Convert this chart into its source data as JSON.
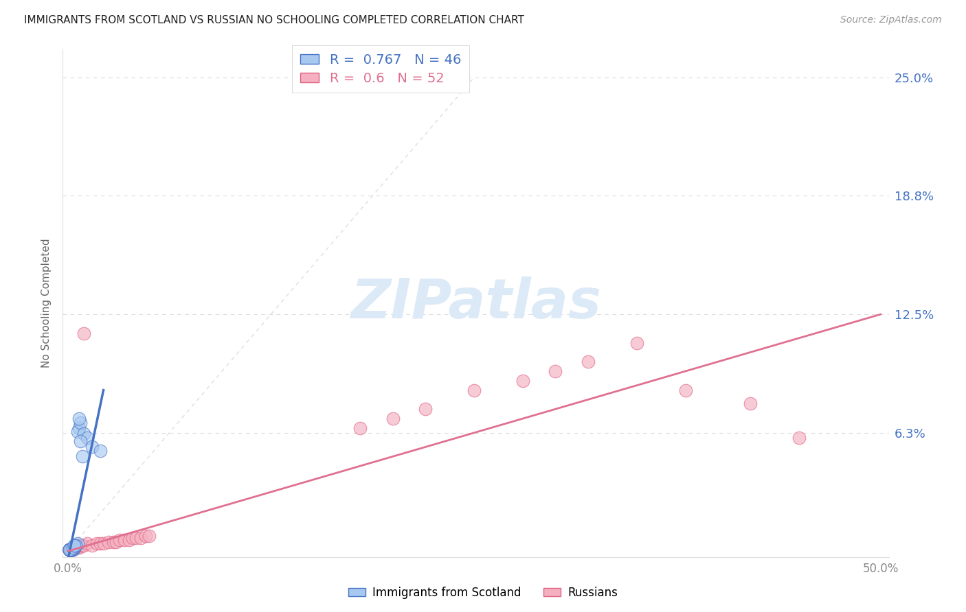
{
  "title": "IMMIGRANTS FROM SCOTLAND VS RUSSIAN NO SCHOOLING COMPLETED CORRELATION CHART",
  "source": "Source: ZipAtlas.com",
  "ylabel": "No Schooling Completed",
  "xlim": [
    -0.003,
    0.505
  ],
  "ylim": [
    -0.003,
    0.265
  ],
  "ytick_positions": [
    0.0,
    0.0625,
    0.125,
    0.1875,
    0.25
  ],
  "ytick_labels_right": [
    "",
    "6.3%",
    "12.5%",
    "18.8%",
    "25.0%"
  ],
  "xtick_positions": [
    0.0,
    0.5
  ],
  "xtick_labels": [
    "0.0%",
    "50.0%"
  ],
  "scotland_face_color": "#a8c8f0",
  "scotland_edge_color": "#4472c4",
  "russia_face_color": "#f4b0c0",
  "russia_edge_color": "#e06080",
  "scotland_R": 0.767,
  "scotland_N": 46,
  "russia_R": 0.6,
  "russia_N": 52,
  "scotland_line_color": "#4472c4",
  "russia_line_color": "#e07090",
  "diag_color": "#bbbbbb",
  "grid_color": "#cccccc",
  "background_color": "#ffffff",
  "title_color": "#222222",
  "right_axis_color": "#4472c4",
  "tick_color": "#888888",
  "watermark_text": "ZIPatlas",
  "watermark_color": "#dce9f7",
  "source_text": "Source: ZipAtlas.com",
  "legend_label_scotland": "Immigrants from Scotland",
  "legend_label_russia": "Russians",
  "scot_x": [
    0.001,
    0.002,
    0.003,
    0.002,
    0.001,
    0.003,
    0.004,
    0.002,
    0.001,
    0.003,
    0.002,
    0.001,
    0.004,
    0.003,
    0.002,
    0.001,
    0.002,
    0.003,
    0.001,
    0.002,
    0.003,
    0.002,
    0.004,
    0.003,
    0.001,
    0.002,
    0.003,
    0.004,
    0.002,
    0.001,
    0.005,
    0.004,
    0.003,
    0.006,
    0.005,
    0.004,
    0.007,
    0.006,
    0.008,
    0.007,
    0.01,
    0.012,
    0.015,
    0.02,
    0.008,
    0.009
  ],
  "scot_y": [
    0.001,
    0.001,
    0.002,
    0.001,
    0.001,
    0.002,
    0.002,
    0.001,
    0.001,
    0.001,
    0.001,
    0.001,
    0.002,
    0.001,
    0.001,
    0.001,
    0.001,
    0.001,
    0.001,
    0.001,
    0.002,
    0.001,
    0.002,
    0.002,
    0.001,
    0.001,
    0.002,
    0.002,
    0.001,
    0.001,
    0.003,
    0.003,
    0.002,
    0.004,
    0.003,
    0.003,
    0.065,
    0.063,
    0.068,
    0.07,
    0.062,
    0.06,
    0.055,
    0.053,
    0.058,
    0.05
  ],
  "rus_x": [
    0.001,
    0.002,
    0.001,
    0.003,
    0.002,
    0.001,
    0.003,
    0.004,
    0.002,
    0.003,
    0.002,
    0.001,
    0.004,
    0.005,
    0.003,
    0.004,
    0.006,
    0.005,
    0.007,
    0.006,
    0.008,
    0.007,
    0.009,
    0.01,
    0.012,
    0.015,
    0.018,
    0.02,
    0.022,
    0.025,
    0.028,
    0.03,
    0.032,
    0.035,
    0.038,
    0.04,
    0.042,
    0.045,
    0.048,
    0.05,
    0.18,
    0.2,
    0.22,
    0.25,
    0.28,
    0.3,
    0.32,
    0.35,
    0.38,
    0.42,
    0.45,
    0.01
  ],
  "rus_y": [
    0.001,
    0.001,
    0.001,
    0.002,
    0.001,
    0.001,
    0.002,
    0.002,
    0.001,
    0.002,
    0.001,
    0.001,
    0.002,
    0.002,
    0.001,
    0.002,
    0.002,
    0.002,
    0.003,
    0.003,
    0.003,
    0.002,
    0.003,
    0.003,
    0.004,
    0.003,
    0.004,
    0.004,
    0.004,
    0.005,
    0.005,
    0.005,
    0.006,
    0.006,
    0.006,
    0.007,
    0.007,
    0.007,
    0.008,
    0.008,
    0.065,
    0.07,
    0.075,
    0.085,
    0.09,
    0.095,
    0.1,
    0.11,
    0.085,
    0.078,
    0.06,
    0.115
  ],
  "scot_line_x0": 0.0,
  "scot_line_x1": 0.022,
  "scot_line_y0": -0.005,
  "scot_line_y1": 0.085,
  "rus_line_x0": 0.0,
  "rus_line_x1": 0.5,
  "rus_line_y0": 0.0,
  "rus_line_y1": 0.125
}
